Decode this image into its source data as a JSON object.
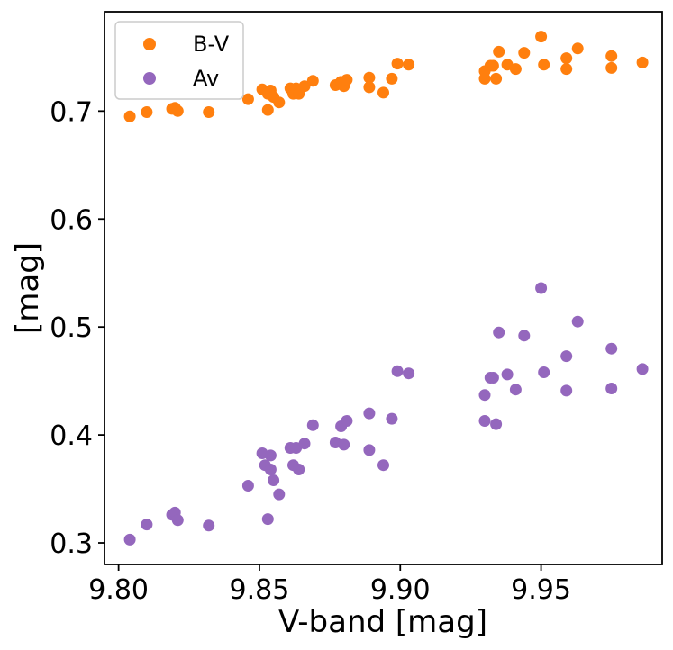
{
  "chart_data": {
    "type": "scatter",
    "xlabel": "V-band [mag]",
    "ylabel": "[mag]",
    "xlim": [
      9.795,
      9.993
    ],
    "ylim": [
      0.28,
      0.792
    ],
    "xticks": [
      9.8,
      9.85,
      9.9,
      9.95
    ],
    "xtick_labels": [
      "9.80",
      "9.85",
      "9.90",
      "9.95"
    ],
    "yticks": [
      0.3,
      0.4,
      0.5,
      0.6,
      0.7
    ],
    "ytick_labels": [
      "0.3",
      "0.4",
      "0.5",
      "0.6",
      "0.7"
    ],
    "grid": false,
    "legend_position": "top-left",
    "series": [
      {
        "name": "B-V",
        "color": "#ff7f0e",
        "points": [
          [
            9.804,
            0.695
          ],
          [
            9.81,
            0.699
          ],
          [
            9.819,
            0.702
          ],
          [
            9.82,
            0.703
          ],
          [
            9.821,
            0.7
          ],
          [
            9.832,
            0.699
          ],
          [
            9.846,
            0.711
          ],
          [
            9.851,
            0.72
          ],
          [
            9.853,
            0.716
          ],
          [
            9.853,
            0.701
          ],
          [
            9.854,
            0.719
          ],
          [
            9.855,
            0.713
          ],
          [
            9.857,
            0.708
          ],
          [
            9.861,
            0.721
          ],
          [
            9.862,
            0.716
          ],
          [
            9.863,
            0.721
          ],
          [
            9.864,
            0.716
          ],
          [
            9.866,
            0.723
          ],
          [
            9.869,
            0.728
          ],
          [
            9.877,
            0.724
          ],
          [
            9.879,
            0.727
          ],
          [
            9.88,
            0.723
          ],
          [
            9.881,
            0.729
          ],
          [
            9.889,
            0.731
          ],
          [
            9.889,
            0.722
          ],
          [
            9.894,
            0.717
          ],
          [
            9.897,
            0.73
          ],
          [
            9.899,
            0.744
          ],
          [
            9.903,
            0.743
          ],
          [
            9.93,
            0.737
          ],
          [
            9.93,
            0.73
          ],
          [
            9.932,
            0.742
          ],
          [
            9.933,
            0.742
          ],
          [
            9.934,
            0.73
          ],
          [
            9.935,
            0.755
          ],
          [
            9.938,
            0.743
          ],
          [
            9.941,
            0.739
          ],
          [
            9.944,
            0.754
          ],
          [
            9.95,
            0.769
          ],
          [
            9.951,
            0.743
          ],
          [
            9.959,
            0.749
          ],
          [
            9.959,
            0.739
          ],
          [
            9.963,
            0.758
          ],
          [
            9.975,
            0.751
          ],
          [
            9.975,
            0.74
          ],
          [
            9.986,
            0.745
          ]
        ]
      },
      {
        "name": "Av",
        "color": "#9467bd",
        "points": [
          [
            9.804,
            0.303
          ],
          [
            9.81,
            0.317
          ],
          [
            9.819,
            0.326
          ],
          [
            9.82,
            0.328
          ],
          [
            9.821,
            0.321
          ],
          [
            9.832,
            0.316
          ],
          [
            9.846,
            0.353
          ],
          [
            9.851,
            0.383
          ],
          [
            9.852,
            0.372
          ],
          [
            9.853,
            0.322
          ],
          [
            9.854,
            0.368
          ],
          [
            9.854,
            0.381
          ],
          [
            9.855,
            0.358
          ],
          [
            9.857,
            0.345
          ],
          [
            9.861,
            0.388
          ],
          [
            9.862,
            0.372
          ],
          [
            9.863,
            0.388
          ],
          [
            9.864,
            0.368
          ],
          [
            9.866,
            0.392
          ],
          [
            9.869,
            0.409
          ],
          [
            9.877,
            0.393
          ],
          [
            9.879,
            0.408
          ],
          [
            9.88,
            0.391
          ],
          [
            9.881,
            0.413
          ],
          [
            9.889,
            0.42
          ],
          [
            9.889,
            0.386
          ],
          [
            9.894,
            0.372
          ],
          [
            9.897,
            0.415
          ],
          [
            9.899,
            0.459
          ],
          [
            9.903,
            0.457
          ],
          [
            9.93,
            0.437
          ],
          [
            9.93,
            0.413
          ],
          [
            9.932,
            0.453
          ],
          [
            9.933,
            0.453
          ],
          [
            9.934,
            0.41
          ],
          [
            9.935,
            0.495
          ],
          [
            9.938,
            0.456
          ],
          [
            9.941,
            0.442
          ],
          [
            9.944,
            0.492
          ],
          [
            9.95,
            0.536
          ],
          [
            9.951,
            0.458
          ],
          [
            9.959,
            0.473
          ],
          [
            9.959,
            0.441
          ],
          [
            9.963,
            0.505
          ],
          [
            9.975,
            0.48
          ],
          [
            9.975,
            0.443
          ],
          [
            9.986,
            0.461
          ]
        ]
      }
    ]
  }
}
